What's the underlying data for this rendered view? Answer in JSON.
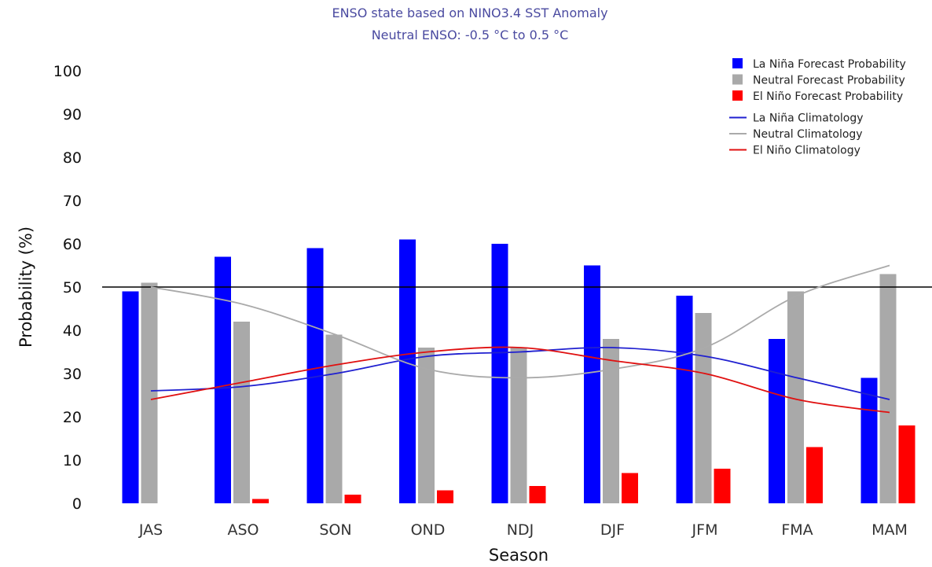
{
  "chart_data": {
    "type": "bar",
    "title": "ENSO state based on NINO3.4 SST Anomaly",
    "subtitle": "Neutral ENSO: -0.5 °C to 0.5 °C",
    "xlabel": "Season",
    "ylabel": "Probability (%)",
    "ylim": [
      0,
      100
    ],
    "yticks": [
      0,
      10,
      20,
      30,
      40,
      50,
      60,
      70,
      80,
      90,
      100
    ],
    "reference_line": 50,
    "grid": false,
    "legend_position": "top-right",
    "categories": [
      "JAS",
      "ASO",
      "SON",
      "OND",
      "NDJ",
      "DJF",
      "JFM",
      "FMA",
      "MAM"
    ],
    "series": [
      {
        "name": "La Niña Forecast Probability",
        "type": "bar",
        "color": "#0000ff",
        "values": [
          49,
          57,
          59,
          61,
          60,
          55,
          48,
          38,
          29
        ]
      },
      {
        "name": "Neutral Forecast Probability",
        "type": "bar",
        "color": "#a9a9a9",
        "values": [
          51,
          42,
          39,
          36,
          36,
          38,
          44,
          49,
          53
        ]
      },
      {
        "name": "El Niño Forecast Probability",
        "type": "bar",
        "color": "#ff0000",
        "values": [
          0,
          1,
          2,
          3,
          4,
          7,
          8,
          13,
          18
        ]
      },
      {
        "name": "La Niña Climatology",
        "type": "line",
        "color": "#2020d0",
        "values": [
          26,
          27,
          30,
          34,
          35,
          36,
          34,
          29,
          24
        ]
      },
      {
        "name": "Neutral Climatology",
        "type": "line",
        "color": "#aaaaaa",
        "values": [
          50,
          46,
          39,
          31,
          29,
          31,
          36,
          48,
          55
        ]
      },
      {
        "name": "El Niño Climatology",
        "type": "line",
        "color": "#e01010",
        "values": [
          24,
          28,
          32,
          35,
          36,
          33,
          30,
          24,
          21
        ]
      }
    ]
  }
}
